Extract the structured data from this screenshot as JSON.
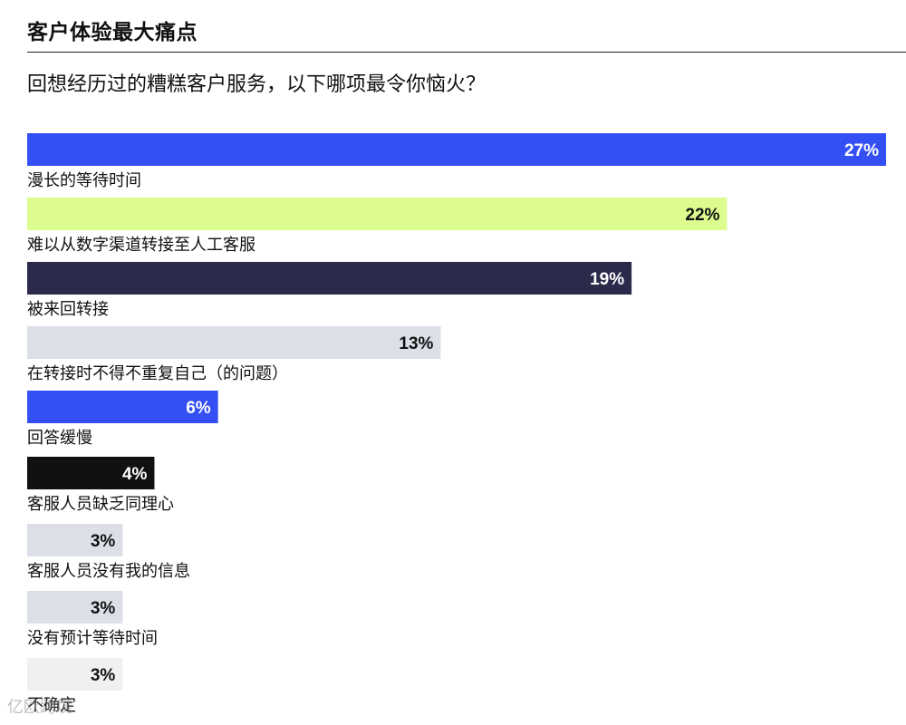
{
  "header": {
    "title": "客户体验最大痛点",
    "subtitle": "回想经历过的糟糕客户服务，以下哪项最令你恼火？"
  },
  "watermark": "亿欧跨境",
  "chart_data": {
    "type": "bar",
    "orientation": "horizontal",
    "title": "客户体验最大痛点",
    "subtitle": "回想经历过的糟糕客户服务，以下哪项最令你恼火？",
    "xlim": [
      0,
      27
    ],
    "unit": "%",
    "grid": false,
    "legend": "none",
    "categories": [
      "漫长的等待时间",
      "难以从数字渠道转接至人工客服",
      "被来回转接",
      "在转接时不得不重复自己（的问题）",
      "回答缓慢",
      "客服人员缺乏同理心",
      "客服人员没有我的信息",
      "没有预计等待时间",
      "不确定"
    ],
    "values": [
      27,
      22,
      19,
      13,
      6,
      4,
      3,
      3,
      3
    ],
    "value_labels": [
      "27%",
      "22%",
      "19%",
      "13%",
      "6%",
      "4%",
      "3%",
      "3%",
      "3%"
    ],
    "bar_colors": [
      "#3450f5",
      "#dcfc8f",
      "#2b2a4a",
      "#dcdfe8",
      "#3450f5",
      "#111111",
      "#dcdfe8",
      "#dcdfe8",
      "#f0f0f0"
    ],
    "value_colors": [
      "#ffffff",
      "#111111",
      "#ffffff",
      "#111111",
      "#ffffff",
      "#ffffff",
      "#111111",
      "#111111",
      "#111111"
    ]
  }
}
